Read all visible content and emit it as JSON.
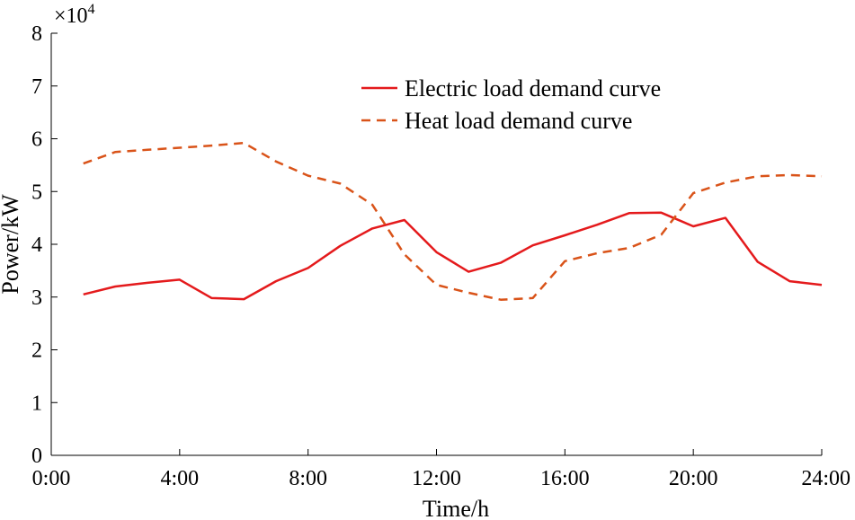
{
  "chart_data": {
    "type": "line",
    "title": "",
    "xlabel": "Time/h",
    "ylabel": "Power/kW",
    "y_multiplier_base": "×10",
    "y_multiplier_exp": "4",
    "xlim": [
      0,
      24
    ],
    "ylim": [
      0,
      8
    ],
    "grid": false,
    "legend_position": "top-right",
    "x_ticks": [
      {
        "value": 0,
        "label": "0:00"
      },
      {
        "value": 4,
        "label": "4:00"
      },
      {
        "value": 8,
        "label": "8:00"
      },
      {
        "value": 12,
        "label": "12:00"
      },
      {
        "value": 16,
        "label": "16:00"
      },
      {
        "value": 20,
        "label": "20:00"
      },
      {
        "value": 24,
        "label": "24:00"
      }
    ],
    "y_ticks": [
      {
        "value": 0,
        "label": "0"
      },
      {
        "value": 1,
        "label": "1"
      },
      {
        "value": 2,
        "label": "2"
      },
      {
        "value": 3,
        "label": "3"
      },
      {
        "value": 4,
        "label": "4"
      },
      {
        "value": 5,
        "label": "5"
      },
      {
        "value": 6,
        "label": "6"
      },
      {
        "value": 7,
        "label": "7"
      },
      {
        "value": 8,
        "label": "8"
      }
    ],
    "x": [
      1,
      2,
      3,
      4,
      5,
      6,
      7,
      8,
      9,
      10,
      11,
      12,
      13,
      14,
      15,
      16,
      17,
      18,
      19,
      20,
      21,
      22,
      23,
      24
    ],
    "series": [
      {
        "name": "Electric load demand curve",
        "color": "#e41a1c",
        "style": "solid",
        "values": [
          3.05,
          3.2,
          3.27,
          3.33,
          2.98,
          2.96,
          3.3,
          3.55,
          3.97,
          4.3,
          4.46,
          3.85,
          3.48,
          3.65,
          3.98,
          4.17,
          4.37,
          4.59,
          4.6,
          4.34,
          4.5,
          3.67,
          3.3,
          3.23
        ]
      },
      {
        "name": "Heat load demand curve",
        "color": "#d95319",
        "style": "dashed",
        "values": [
          5.53,
          5.75,
          5.79,
          5.83,
          5.87,
          5.92,
          5.57,
          5.3,
          5.15,
          4.75,
          3.81,
          3.23,
          3.08,
          2.95,
          2.98,
          3.68,
          3.83,
          3.93,
          4.18,
          4.97,
          5.17,
          5.29,
          5.31,
          5.29
        ]
      }
    ]
  }
}
